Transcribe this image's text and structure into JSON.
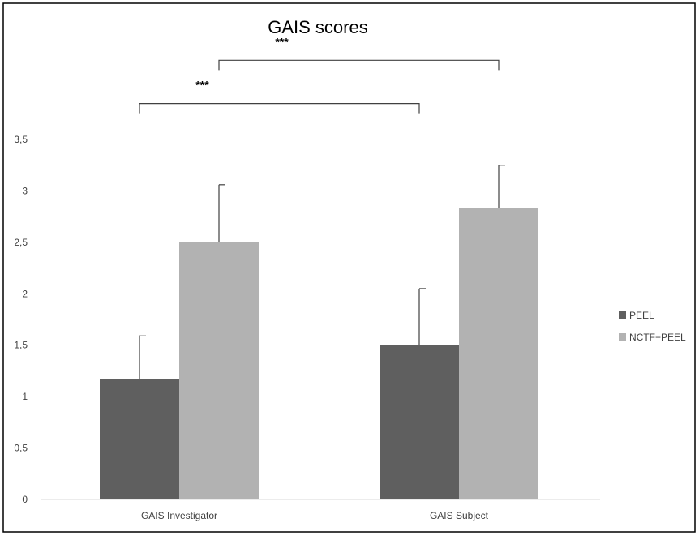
{
  "chart_data": {
    "type": "bar",
    "title": "GAIS scores",
    "xlabel": "",
    "ylabel": "",
    "categories": [
      "GAIS Investigator",
      "GAIS Subject"
    ],
    "series": [
      {
        "name": "PEEL",
        "values": [
          1.17,
          1.5
        ],
        "errors": [
          0.42,
          0.55
        ],
        "color": "#5f5f5f"
      },
      {
        "name": "NCTF+PEEL",
        "values": [
          2.5,
          2.83
        ],
        "errors": [
          0.56,
          0.42
        ],
        "color": "#b2b2b2"
      }
    ],
    "ylim": [
      0,
      3.5
    ],
    "yticks": [
      0,
      0.5,
      1,
      1.5,
      2,
      2.5,
      3,
      3.5
    ],
    "ytick_labels": [
      "0",
      "0,5",
      "1",
      "1,5",
      "2",
      "2,5",
      "3",
      "3,5"
    ],
    "grid": false,
    "legend": "right",
    "annotations": [
      {
        "text": "***",
        "from": {
          "category": 0,
          "series": 0
        },
        "to": {
          "category": 1,
          "series": 0
        },
        "level": 3.85
      },
      {
        "text": "***",
        "from": {
          "category": 0,
          "series": 1
        },
        "to": {
          "category": 1,
          "series": 1
        },
        "level": 4.27
      }
    ]
  }
}
